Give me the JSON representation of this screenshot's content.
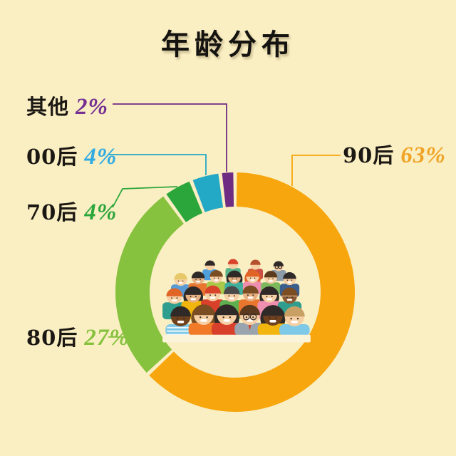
{
  "title": "年龄分布",
  "background_color": "#FAEEC3",
  "chart_data": {
    "type": "donut",
    "title": "年龄分布",
    "unit": "%",
    "legend_position": "callout-labels",
    "center_image": "crowd-of-people-illustration",
    "slices": [
      {
        "label": "90后",
        "value": 63,
        "value_text": "63%",
        "color": "#F7A60D",
        "value_color": "#F0A425"
      },
      {
        "label": "80后",
        "value": 27,
        "value_text": "27%",
        "color": "#87C23E",
        "value_color": "#87C23E"
      },
      {
        "label": "70后",
        "value": 4,
        "value_text": "4%",
        "color": "#2BA63B",
        "value_color": "#2BA63B"
      },
      {
        "label": "00后",
        "value": 4,
        "value_text": "4%",
        "color": "#23A8C6",
        "value_color": "#2FABE2"
      },
      {
        "label": "其他",
        "value": 2,
        "value_text": "2%",
        "color": "#6F2C83",
        "value_color": "#753092"
      }
    ]
  }
}
